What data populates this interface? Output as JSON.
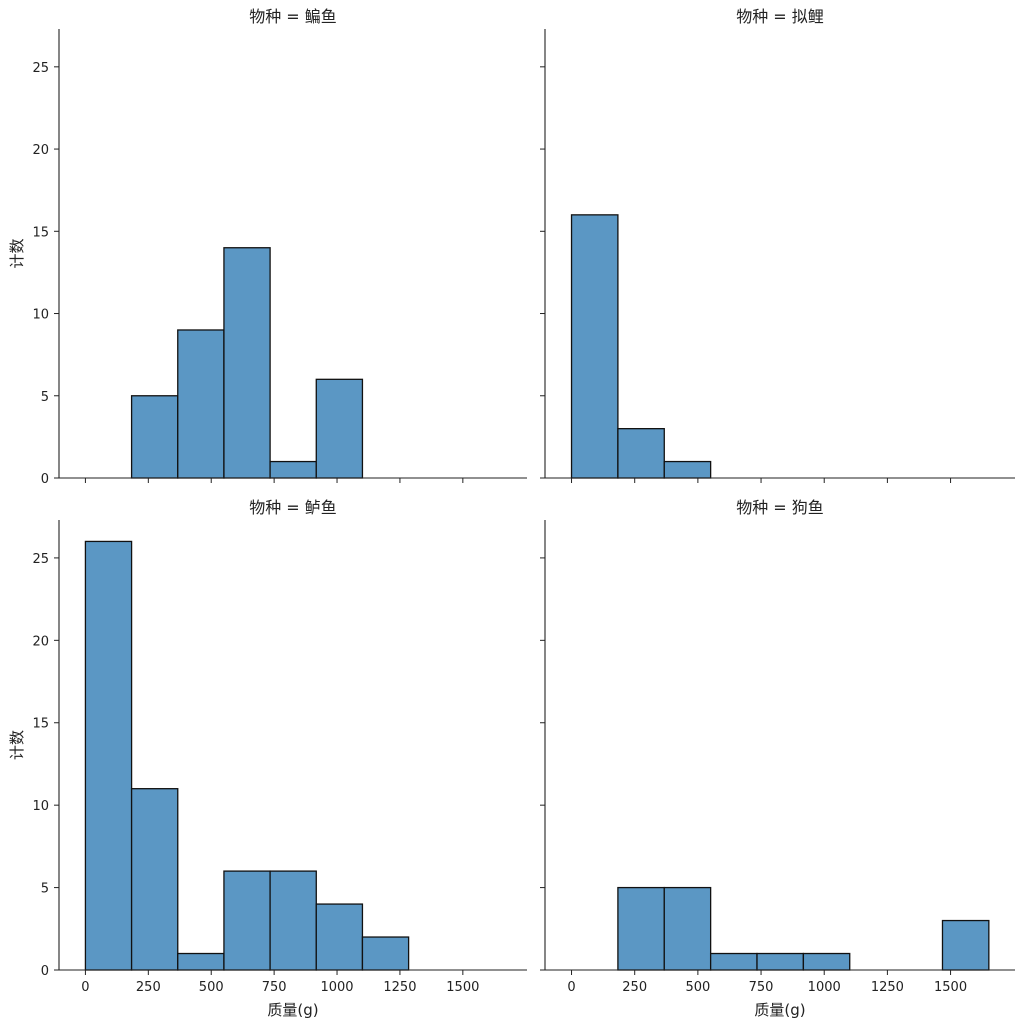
{
  "chart_data": {
    "type": "bar",
    "layout": "2x2 facet grid, shared x and y axes",
    "bar_color": "#5b97c4",
    "bar_edge_color": "#111111",
    "grid": false,
    "bin_edges": [
      0,
      183.5,
      367,
      550.5,
      734,
      917.5,
      1101,
      1284.5,
      1468,
      1651.5
    ],
    "xlim": [
      -105,
      1755
    ],
    "ylim": [
      0,
      27.3
    ],
    "x_ticks": [
      0,
      250,
      500,
      750,
      1000,
      1250,
      1500
    ],
    "x_tick_labels": [
      "0",
      "250",
      "500",
      "750",
      "1000",
      "1250",
      "1500"
    ],
    "y_ticks": [
      0,
      5,
      10,
      15,
      20,
      25
    ],
    "y_tick_labels": [
      "0",
      "5",
      "10",
      "15",
      "20",
      "25"
    ],
    "xlabel": "质量(g)",
    "ylabel": "计数",
    "facets": [
      {
        "title": "物种 = 鳊鱼",
        "counts": [
          0,
          5,
          9,
          14,
          1,
          6,
          0,
          0,
          0
        ]
      },
      {
        "title": "物种 = 拟鲤",
        "counts": [
          16,
          3,
          1,
          0,
          0,
          0,
          0,
          0,
          0
        ]
      },
      {
        "title": "物种 = 鲈鱼",
        "counts": [
          26,
          11,
          1,
          6,
          6,
          4,
          2,
          0,
          0
        ]
      },
      {
        "title": "物种 = 狗鱼",
        "counts": [
          0,
          5,
          5,
          1,
          1,
          1,
          0,
          0,
          3
        ]
      }
    ]
  }
}
